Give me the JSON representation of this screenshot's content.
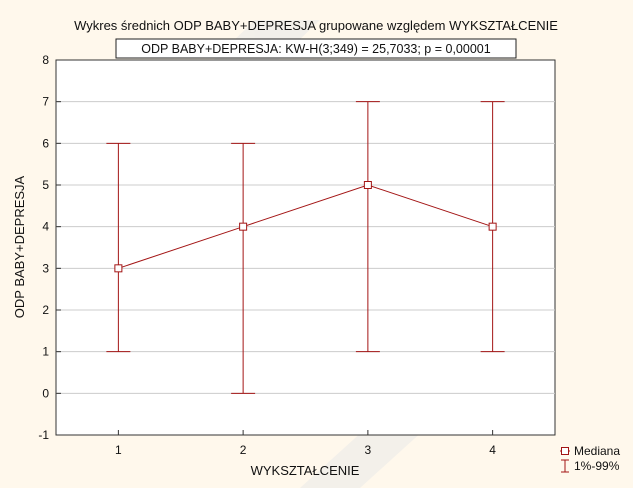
{
  "chart_data": {
    "type": "line",
    "title": "Wykres średnich ODP BABY+DEPRESJA grupowane względem WYKSZTAŁCENIE",
    "subtitle": "ODP BABY+DEPRESJA:  KW-H(3;349) = 25,7033; p = 0,00001",
    "xlabel": "WYKSZTAŁCENIE",
    "ylabel": "ODP BABY+DEPRESJA",
    "categories": [
      "1",
      "2",
      "3",
      "4"
    ],
    "ylim": [
      -1,
      8
    ],
    "yticks": [
      "-1",
      "0",
      "1",
      "2",
      "3",
      "4",
      "5",
      "6",
      "7",
      "8"
    ],
    "grid": true,
    "legend_position": "bottom-right",
    "series": [
      {
        "name": "Mediana",
        "values": [
          3,
          4,
          5,
          4
        ],
        "lower": [
          1,
          0,
          1,
          1
        ],
        "upper": [
          6,
          6,
          7,
          7
        ]
      }
    ],
    "legend": [
      {
        "label": "Mediana",
        "symbol": "square-marker"
      },
      {
        "label": "1%-99%",
        "symbol": "errorbar"
      }
    ],
    "colors": {
      "series": "#a31515",
      "background": "#fff8ec",
      "plot_background": "#ffffff",
      "grid": "#cccccc",
      "frame": "#333333"
    }
  }
}
